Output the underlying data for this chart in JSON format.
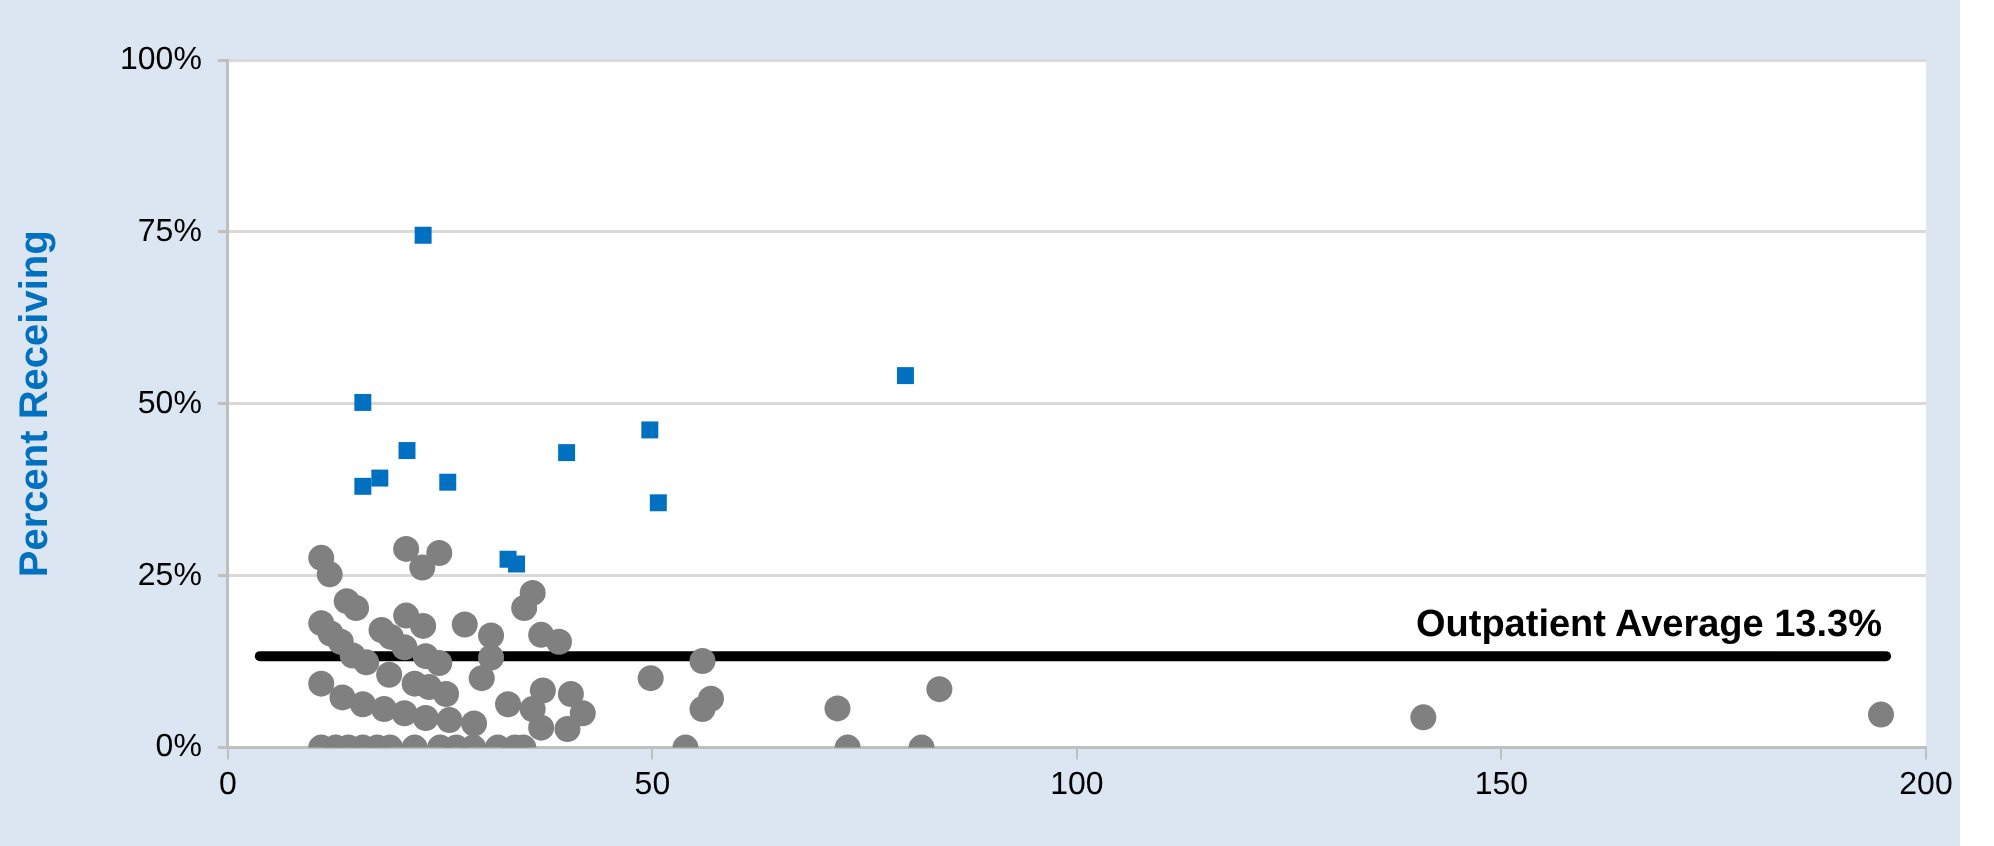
{
  "chart_data": {
    "type": "scatter",
    "ylabel": "Percent Receiving",
    "xlim": [
      0,
      200
    ],
    "xticks": [
      0,
      50,
      100,
      150,
      200
    ],
    "ylim": [
      0,
      100
    ],
    "yticks": [
      {
        "value": 0,
        "label": "0%"
      },
      {
        "value": 25,
        "label": "25%"
      },
      {
        "value": 50,
        "label": "50%"
      },
      {
        "value": 75,
        "label": "75%"
      },
      {
        "value": 100,
        "label": "100%"
      }
    ],
    "grid": "y",
    "legend": false,
    "ref_lines": [
      {
        "axis": "y",
        "value": 13.3,
        "label": "Outpatient Average 13.3%",
        "color": "#000000",
        "line_style": "solid"
      }
    ],
    "series": [
      {
        "color": "#808080",
        "marker": "circle",
        "x": [
          11.0,
          12.0,
          14.0,
          15.1,
          11.0,
          12.1,
          13.3,
          18.1,
          19.2,
          21.0,
          23.0,
          21.0,
          22.9,
          24.9,
          27.9,
          31.0,
          35.9,
          34.9,
          36.9,
          39.0,
          31.0,
          29.9,
          20.8,
          14.7,
          16.3,
          19.0,
          23.3,
          24.9,
          22.0,
          23.7,
          25.7,
          11.0,
          13.5,
          15.9,
          18.4,
          20.8,
          23.3,
          26.1,
          29.0,
          33.0,
          35.9,
          37.1,
          40.4,
          41.8,
          36.9,
          40.0,
          49.8,
          55.9,
          56.9,
          55.9,
          53.9,
          11.0,
          12.7,
          14.2,
          15.9,
          17.6,
          19.1,
          22.0,
          25.0,
          26.9,
          28.9,
          31.8,
          33.8,
          34.8,
          71.8,
          73.0,
          83.8,
          81.7,
          140.8,
          194.7
        ],
        "values": [
          27.6,
          25.2,
          21.3,
          20.3,
          18.1,
          16.6,
          15.4,
          17.1,
          16.1,
          19.2,
          17.7,
          28.9,
          26.2,
          28.3,
          17.9,
          16.3,
          22.5,
          20.3,
          16.4,
          15.4,
          13.1,
          10.1,
          14.6,
          13.4,
          12.4,
          10.6,
          13.3,
          12.3,
          9.3,
          8.8,
          7.8,
          9.3,
          7.3,
          6.3,
          5.6,
          5.0,
          4.3,
          4.0,
          3.5,
          6.3,
          5.6,
          8.3,
          7.8,
          5.0,
          2.9,
          2.7,
          10.1,
          12.6,
          7.1,
          5.6,
          0,
          0,
          0,
          0,
          0,
          0,
          0,
          0,
          0,
          0,
          0,
          0,
          0,
          0,
          5.7,
          0,
          8.5,
          0,
          4.4,
          4.8
        ]
      },
      {
        "color": "#0070c0",
        "marker": "square",
        "x": [
          15.9,
          23.0,
          15.9,
          17.9,
          21.1,
          25.9,
          33.0,
          34.0,
          39.9,
          49.7,
          50.7,
          79.8
        ],
        "values": [
          50.2,
          74.5,
          38.0,
          39.2,
          43.2,
          38.6,
          27.4,
          26.7,
          42.9,
          46.2,
          35.6,
          54.1
        ]
      }
    ]
  }
}
